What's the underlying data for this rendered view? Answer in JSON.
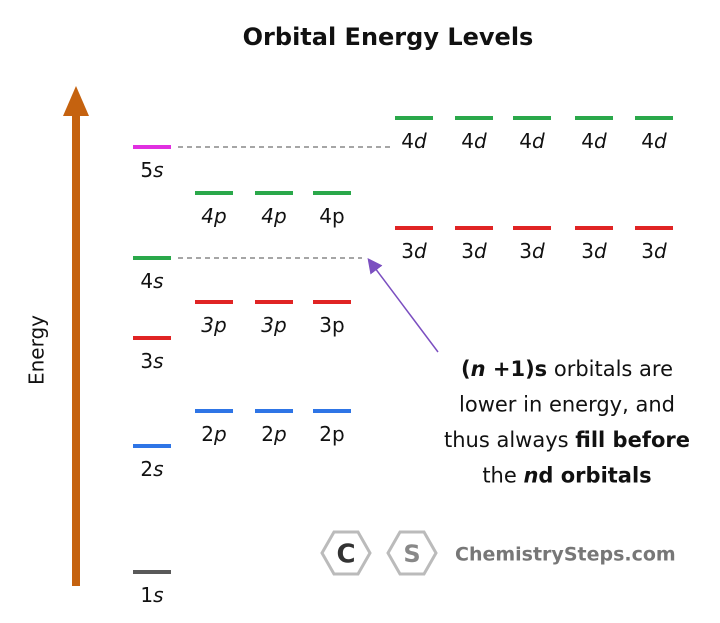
{
  "title": "Orbital Energy Levels",
  "axis_label": "Energy",
  "groups": [
    {
      "orbitals": [
        {
          "n": "1",
          "l": "s"
        }
      ]
    },
    {
      "orbitals": [
        {
          "n": "2",
          "l": "s"
        }
      ]
    },
    {
      "orbitals": [
        {
          "n": "3",
          "l": "s"
        }
      ]
    },
    {
      "orbitals": [
        {
          "n": "4",
          "l": "s"
        }
      ]
    },
    {
      "orbitals": [
        {
          "n": "5",
          "l": "s"
        }
      ]
    },
    {
      "orbitals": [
        {
          "n": "2",
          "l": "p"
        },
        {
          "n": "2",
          "l": "p"
        },
        {
          "n": "2",
          "l": "p"
        }
      ]
    },
    {
      "orbitals": [
        {
          "n": "3",
          "l": "p"
        },
        {
          "n": "3",
          "l": "p"
        },
        {
          "n": "3",
          "l": "p"
        }
      ]
    },
    {
      "orbitals": [
        {
          "n": "4",
          "l": "p"
        },
        {
          "n": "4",
          "l": "p"
        },
        {
          "n": "4",
          "l": "p"
        }
      ]
    },
    {
      "orbitals": [
        {
          "n": "3",
          "l": "d"
        },
        {
          "n": "3",
          "l": "d"
        },
        {
          "n": "3",
          "l": "d"
        },
        {
          "n": "3",
          "l": "d"
        },
        {
          "n": "3",
          "l": "d"
        }
      ]
    },
    {
      "orbitals": [
        {
          "n": "4",
          "l": "d"
        },
        {
          "n": "4",
          "l": "d"
        },
        {
          "n": "4",
          "l": "d"
        },
        {
          "n": "4",
          "l": "d"
        },
        {
          "n": "4",
          "l": "d"
        }
      ]
    }
  ],
  "annotation": {
    "lines": [
      [
        {
          "t": "(",
          "b": true
        },
        {
          "t": "n",
          "b": true,
          "i": true
        },
        {
          "t": " +1)s",
          "b": true
        },
        {
          "t": " orbitals are"
        }
      ],
      [
        {
          "t": "lower in energy, and"
        }
      ],
      [
        {
          "t": "thus always "
        },
        {
          "t": "fill before",
          "b": true
        }
      ],
      [
        {
          "t": "the "
        },
        {
          "t": "n",
          "b": true,
          "i": true
        },
        {
          "t": "d orbitals",
          "b": true
        }
      ]
    ]
  },
  "logo": {
    "c": "C",
    "s": "S",
    "text": "ChemistrySteps.com"
  }
}
